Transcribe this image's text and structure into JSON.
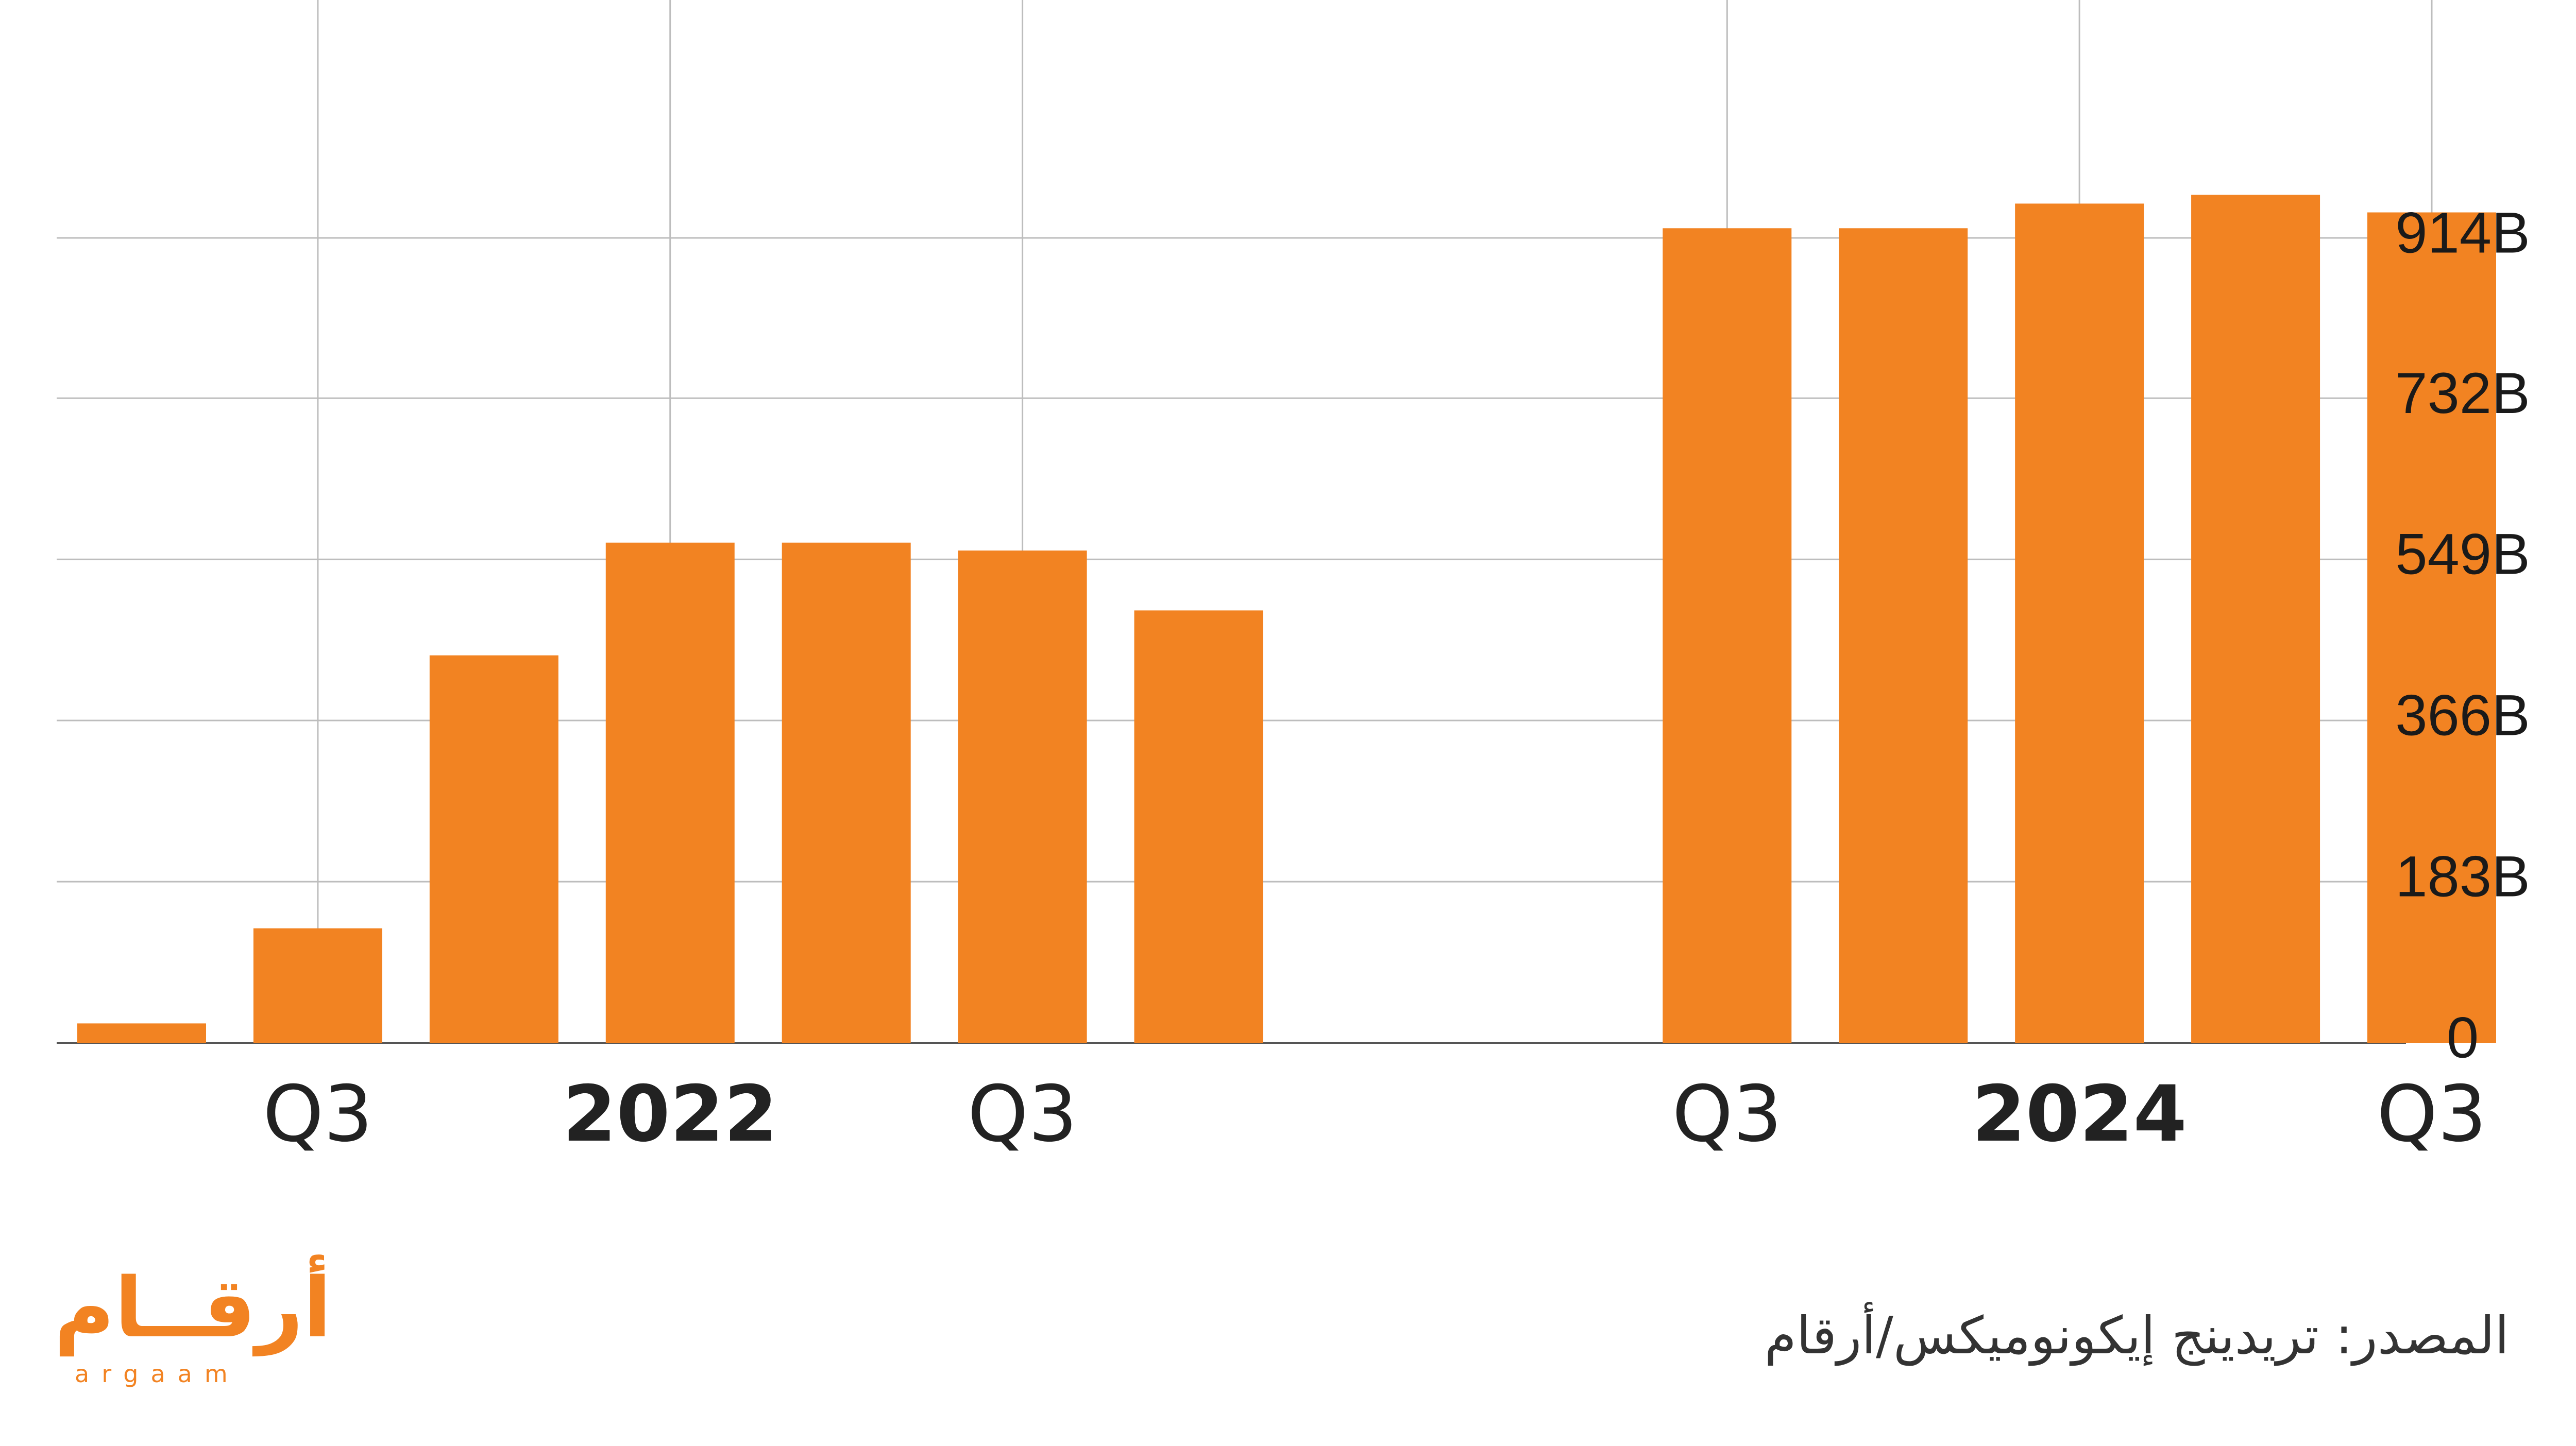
{
  "chart_data": {
    "type": "bar",
    "categories": [
      "",
      "Q3",
      "",
      "2022",
      "",
      "Q3",
      "",
      "",
      "",
      "Q3",
      "",
      "2024",
      "",
      "Q3"
    ],
    "values": [
      22,
      130,
      440,
      568,
      568,
      559,
      491,
      null,
      null,
      925,
      925,
      953,
      963,
      943
    ],
    "ylim": [
      0,
      1000
    ],
    "yticks": [
      0,
      183,
      366,
      549,
      732,
      914
    ],
    "ytick_labels": [
      "0",
      "183B",
      "366B",
      "549B",
      "732B",
      "914B"
    ],
    "xtick_labels": [
      {
        "label": "Q3",
        "at": 1,
        "bold": false
      },
      {
        "label": "2022",
        "at": 3,
        "bold": true
      },
      {
        "label": "Q3",
        "at": 5,
        "bold": false
      },
      {
        "label": "Q3",
        "at": 9,
        "bold": false
      },
      {
        "label": "2024",
        "at": 11,
        "bold": true
      },
      {
        "label": "Q3",
        "at": 13,
        "bold": false
      }
    ],
    "bar_color": "#F28322",
    "grid": true,
    "y_axis_position": "right"
  },
  "source": "المصدر: تريدينج إيكونوميكس/أرقام",
  "logo": {
    "arabic": "أرقــام",
    "latin": "argaam",
    "color": "#F28322"
  }
}
